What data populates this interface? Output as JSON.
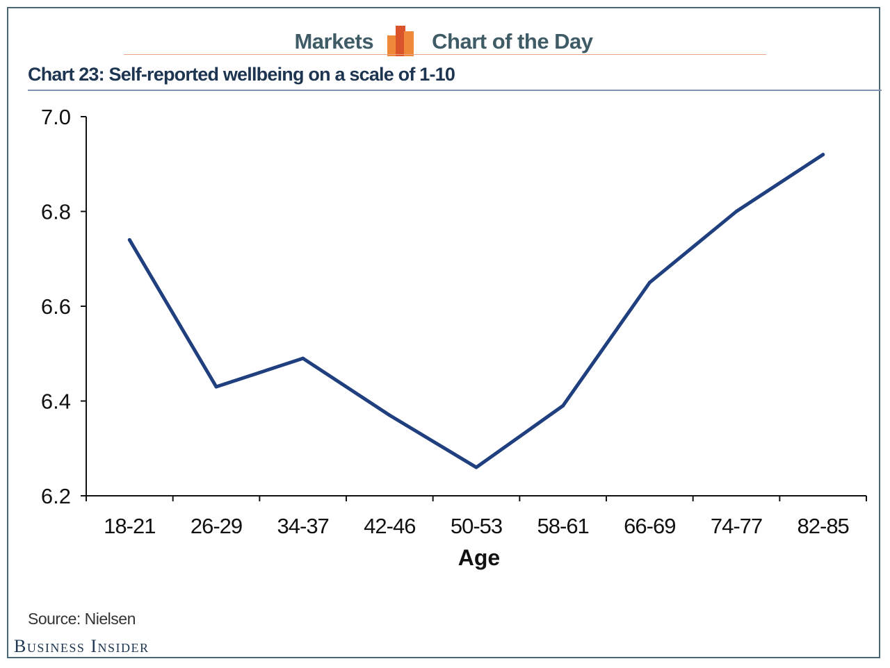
{
  "header": {
    "left_label": "Markets",
    "right_label": "Chart of the Day"
  },
  "colors": {
    "line": "#1f3f7f",
    "frame": "#4a6672",
    "brand_text": "#3f5b66",
    "logo_orange": "#f0883a",
    "logo_red": "#d9542b"
  },
  "chart_data": {
    "type": "line",
    "title": "Chart 23: Self-reported wellbeing on a scale of 1-10",
    "xlabel": "Age",
    "ylabel": "",
    "categories": [
      "18-21",
      "26-29",
      "34-37",
      "42-46",
      "50-53",
      "58-61",
      "66-69",
      "74-77",
      "82-85"
    ],
    "series": [
      {
        "values": [
          6.74,
          6.43,
          6.49,
          6.37,
          6.26,
          6.39,
          6.65,
          6.8,
          6.92
        ]
      }
    ],
    "ylim": [
      6.2,
      7.0
    ],
    "yticks": [
      "7.0",
      "6.8",
      "6.6",
      "6.4",
      "6.2"
    ],
    "grid": false,
    "legend": "none"
  },
  "footer": {
    "source": "Source: Nielsen",
    "brand": "Business Insider"
  }
}
